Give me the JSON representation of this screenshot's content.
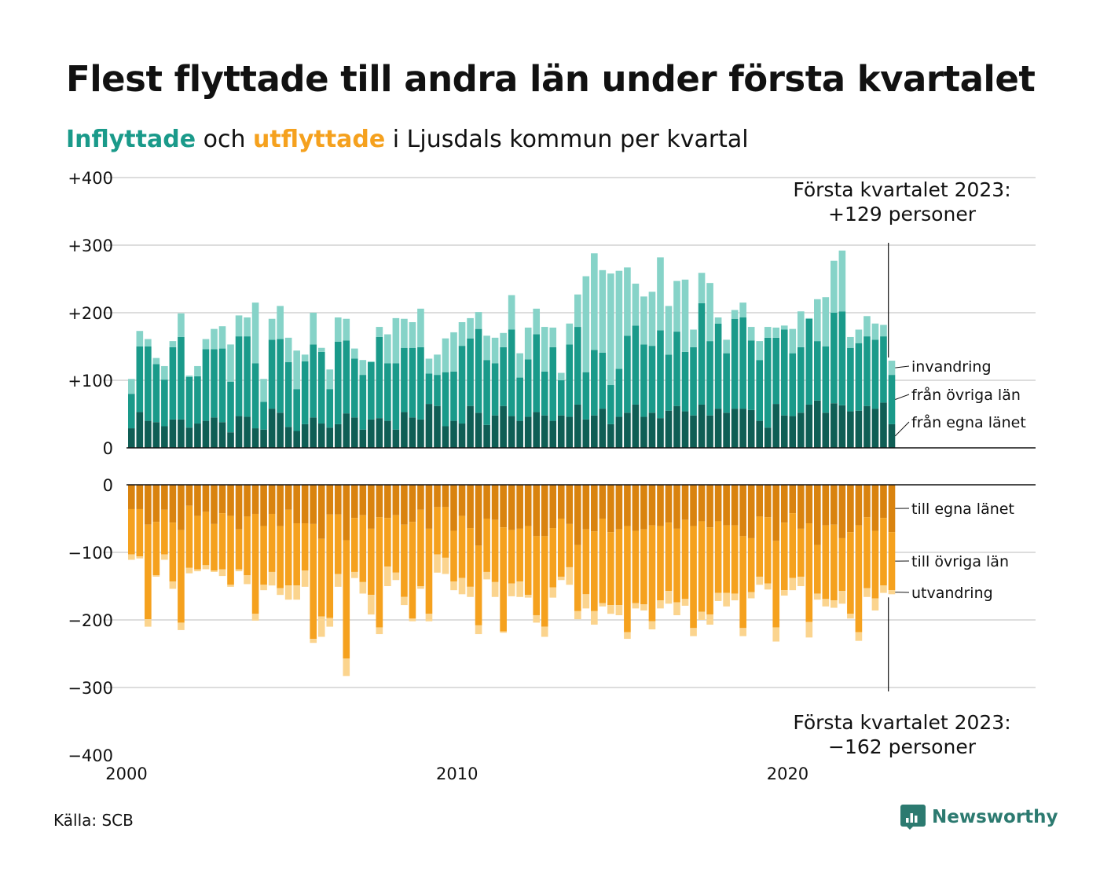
{
  "title": "Flest flyttade till andra län under första kvartalet",
  "subtitle": {
    "in_word": "Inflyttade",
    "and_word": " och ",
    "out_word": "utflyttade",
    "rest": " i Ljusdals kommun per kvartal"
  },
  "source": "Källa: SCB",
  "brand": "Newsworthy",
  "colors": {
    "in_local": "#0f5e55",
    "in_other": "#1a9a8a",
    "in_immig": "#86d3c8",
    "out_local": "#d9830f",
    "out_other": "#f5a11e",
    "out_emig": "#fbd48e",
    "grid": "#dddddd",
    "logo": "#2c7a70"
  },
  "chart_data": {
    "type": "bar",
    "stacked": true,
    "period": "quarter",
    "start_year": 2000,
    "x_ticks": [
      "2000",
      "2010",
      "2020"
    ],
    "x_range": [
      2000,
      2027.5
    ],
    "top_panel": {
      "y_ticks": [
        "0",
        "+100",
        "+200",
        "+300",
        "+400"
      ],
      "ylim": [
        0,
        400
      ],
      "series": [
        {
          "name": "från egna länet",
          "values": [
            29,
            53,
            40,
            38,
            32,
            42,
            42,
            30,
            36,
            40,
            45,
            38,
            23,
            47,
            46,
            29,
            27,
            58,
            52,
            31,
            25,
            35,
            45,
            36,
            30,
            35,
            51,
            45,
            27,
            42,
            44,
            40,
            27,
            53,
            45,
            42,
            65,
            62,
            32,
            40,
            36,
            62,
            52,
            34,
            48,
            62,
            47,
            40,
            46,
            53,
            48,
            40,
            48,
            46,
            64,
            42,
            48,
            58,
            35,
            46,
            52,
            64,
            46,
            52,
            44,
            55,
            62,
            54,
            48,
            64,
            48,
            58,
            52,
            58,
            58,
            56,
            40,
            30,
            65,
            48,
            47,
            52,
            64,
            70,
            52,
            66,
            63,
            54,
            55,
            62,
            58,
            67,
            35
          ]
        },
        {
          "name": "från övriga län",
          "values": [
            51,
            97,
            110,
            86,
            69,
            107,
            122,
            75,
            70,
            106,
            101,
            109,
            75,
            118,
            119,
            96,
            41,
            102,
            109,
            96,
            62,
            93,
            108,
            106,
            57,
            122,
            108,
            87,
            81,
            85,
            120,
            85,
            98,
            95,
            103,
            107,
            45,
            46,
            80,
            73,
            115,
            100,
            124,
            96,
            77,
            87,
            128,
            64,
            85,
            115,
            65,
            109,
            52,
            107,
            115,
            70,
            97,
            83,
            58,
            71,
            114,
            117,
            107,
            99,
            130,
            83,
            110,
            88,
            101,
            150,
            110,
            126,
            88,
            133,
            135,
            103,
            90,
            133,
            98,
            127,
            93,
            97,
            127,
            88,
            98,
            134,
            139,
            94,
            100,
            103,
            102,
            98,
            73
          ]
        },
        {
          "name": "invandring",
          "values": [
            22,
            23,
            11,
            9,
            20,
            9,
            35,
            2,
            15,
            15,
            30,
            33,
            55,
            31,
            28,
            90,
            34,
            31,
            49,
            36,
            57,
            10,
            47,
            6,
            29,
            36,
            32,
            15,
            22,
            1,
            15,
            43,
            67,
            43,
            38,
            57,
            22,
            30,
            50,
            58,
            35,
            30,
            25,
            36,
            38,
            21,
            51,
            36,
            47,
            38,
            66,
            29,
            11,
            31,
            48,
            142,
            143,
            122,
            165,
            145,
            101,
            62,
            71,
            80,
            108,
            72,
            75,
            107,
            26,
            45,
            86,
            9,
            20,
            13,
            22,
            20,
            28,
            16,
            15,
            6,
            36,
            53,
            1,
            62,
            73,
            77,
            90,
            16,
            20,
            30,
            24,
            17,
            21
          ]
        }
      ]
    },
    "bottom_panel": {
      "y_ticks": [
        "0",
        "−100",
        "−200",
        "−300",
        "−400"
      ],
      "ylim": [
        -400,
        0
      ],
      "series": [
        {
          "name": "till egna länet",
          "values": [
            -36,
            -36,
            -59,
            -55,
            -37,
            -56,
            -67,
            -31,
            -46,
            -40,
            -58,
            -42,
            -46,
            -66,
            -47,
            -43,
            -61,
            -43,
            -61,
            -37,
            -57,
            -57,
            -58,
            -80,
            -44,
            -44,
            -82,
            -49,
            -45,
            -65,
            -48,
            -49,
            -45,
            -59,
            -55,
            -37,
            -65,
            -33,
            -33,
            -68,
            -46,
            -64,
            -90,
            -50,
            -52,
            -63,
            -67,
            -65,
            -61,
            -76,
            -76,
            -64,
            -50,
            -58,
            -89,
            -66,
            -69,
            -50,
            -70,
            -66,
            -61,
            -68,
            -66,
            -60,
            -61,
            -56,
            -65,
            -52,
            -61,
            -54,
            -63,
            -54,
            -60,
            -60,
            -76,
            -79,
            -47,
            -48,
            -83,
            -56,
            -42,
            -65,
            -57,
            -89,
            -60,
            -59,
            -79,
            -70,
            -60,
            -48,
            -68,
            -49,
            -70
          ]
        },
        {
          "name": "till övriga län",
          "values": [
            -67,
            -70,
            -140,
            -79,
            -66,
            -87,
            -137,
            -92,
            -79,
            -79,
            -69,
            -83,
            -102,
            -59,
            -87,
            -148,
            -87,
            -86,
            -92,
            -112,
            -92,
            -70,
            -170,
            -115,
            -153,
            -88,
            -175,
            -80,
            -99,
            -98,
            -163,
            -72,
            -85,
            -107,
            -143,
            -113,
            -126,
            -70,
            -75,
            -75,
            -92,
            -87,
            -118,
            -79,
            -92,
            -154,
            -79,
            -78,
            -102,
            -117,
            -134,
            -88,
            -86,
            -64,
            -98,
            -96,
            -118,
            -125,
            -108,
            -112,
            -157,
            -107,
            -111,
            -142,
            -110,
            -101,
            -109,
            -117,
            -151,
            -134,
            -129,
            -106,
            -100,
            -101,
            -136,
            -80,
            -89,
            -98,
            -128,
            -100,
            -96,
            -71,
            -146,
            -72,
            -109,
            -112,
            -78,
            -121,
            -158,
            -105,
            -100,
            -100,
            -86
          ]
        },
        {
          "name": "utvandring",
          "values": [
            -8,
            -3,
            -11,
            -2,
            -8,
            -11,
            -11,
            -8,
            -3,
            -6,
            -2,
            -10,
            -3,
            -3,
            -13,
            -10,
            -8,
            -20,
            -10,
            -21,
            -21,
            -24,
            -6,
            -30,
            -13,
            -19,
            -26,
            -9,
            -17,
            -29,
            -10,
            -29,
            -11,
            -12,
            -4,
            -4,
            -11,
            -27,
            -24,
            -13,
            -24,
            -15,
            -13,
            -11,
            -22,
            -2,
            -19,
            -23,
            -4,
            -11,
            -15,
            -15,
            -5,
            -26,
            -12,
            -21,
            -20,
            -5,
            -13,
            -15,
            -10,
            -8,
            -9,
            -12,
            -12,
            -19,
            -19,
            -10,
            -12,
            -12,
            -15,
            -12,
            -20,
            -10,
            -12,
            -9,
            -12,
            -9,
            -21,
            -8,
            -18,
            -14,
            -23,
            -9,
            -11,
            -11,
            -19,
            -7,
            -13,
            -13,
            -18,
            -11,
            -6
          ]
        }
      ]
    },
    "annotations": {
      "top": "Första kvartalet 2023:\n+129 personer",
      "bottom": "Första kvartalet 2023:\n−162 personer"
    },
    "legend_position": "right"
  }
}
